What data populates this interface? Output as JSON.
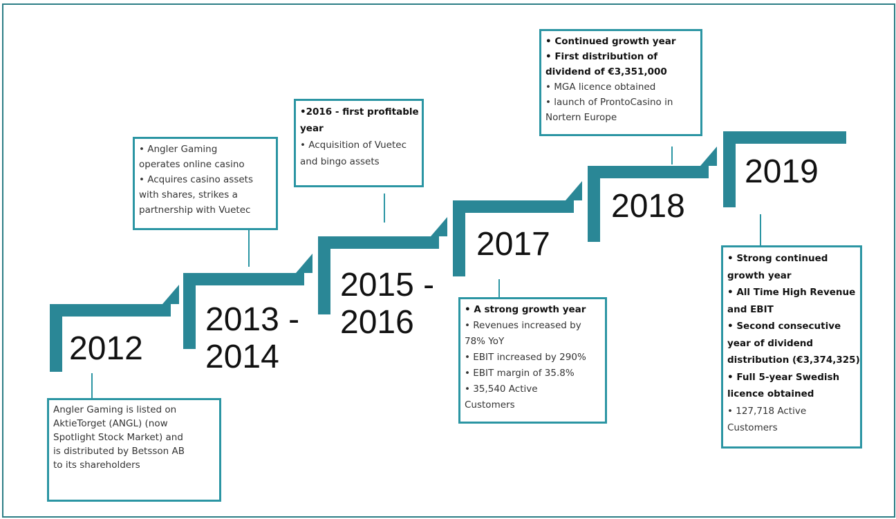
{
  "steps": [
    {
      "year": [
        "2012"
      ],
      "box": [
        "Angler Gaming is listed on",
        "AktieTorget (ANGL) (now",
        "Spotlight Stock Market) and",
        "is distributed by Betsson AB",
        "to its shareholders"
      ]
    },
    {
      "year": [
        "2013 -",
        "2014"
      ],
      "box": [
        "• Angler Gaming",
        "operates online casino",
        "• Acquires casino assets",
        "with shares, strikes a",
        "partnership with Vuetec"
      ]
    },
    {
      "year": [
        "2015 -",
        "2016"
      ],
      "box": [
        "•2016 - first profitable",
        "year",
        "• Acquisition of Vuetec",
        "and bingo  assets"
      ]
    },
    {
      "year": [
        "2017"
      ],
      "box": [
        "• A strong growth year",
        "• Revenues increased by",
        "78% YoY",
        "• EBIT increased by 290%",
        "• EBIT margin of 35.8%",
        "• 35,540 Active",
        "Customers"
      ]
    },
    {
      "year": [
        "2018"
      ],
      "box": [
        "• Continued growth year",
        "• First distribution of",
        "dividend of €3,351,000",
        "• MGA licence obtained",
        "• launch of ProntoCasino in",
        "Nortern Europe"
      ]
    },
    {
      "year": [
        "2019"
      ],
      "box": [
        "• Strong continued",
        "growth year",
        "• All Time High Revenue",
        "and EBIT",
        "•  Second consecutive",
        "year of dividend",
        "distribution (€3,374,325)",
        "• Full 5-year Swedish",
        "licence obtained",
        "• 127,718 Active",
        "Customers"
      ]
    }
  ]
}
